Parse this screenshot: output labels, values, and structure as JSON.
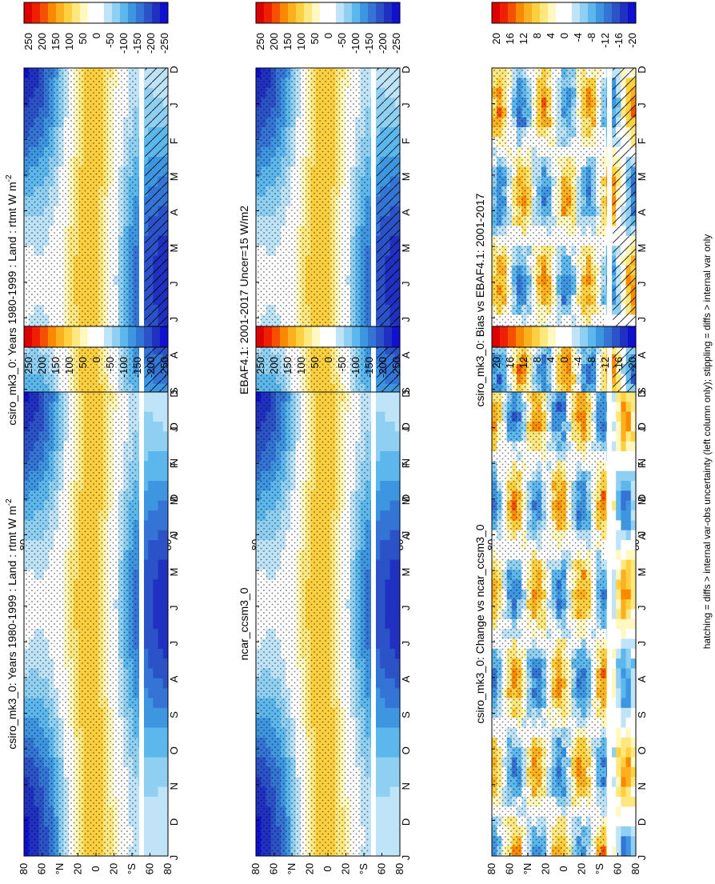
{
  "figure": {
    "footnote": "hatching = diffs > internal var-obs uncertainty (left column only); stippling = diffs > internal var only"
  },
  "months": [
    "D",
    "J",
    "F",
    "M",
    "A",
    "M",
    "J",
    "J",
    "A",
    "S",
    "O",
    "N",
    "D",
    "J"
  ],
  "lat_labels": [
    "80",
    "60",
    "°N",
    "20",
    "0",
    "20",
    "°S",
    "60",
    "80"
  ],
  "chart_data": [
    {
      "type": "heatmap",
      "row": 0,
      "col": 0,
      "title": "csiro_mk3_0: Years 1980-1999 : Land : rtmt W m",
      "title_sup": "-2",
      "x": "month",
      "y": "latitude",
      "field": "mean",
      "colorbar": {
        "colors": [
          "#dd0000",
          "#ee2000",
          "#f55000",
          "#f98a00",
          "#fbb020",
          "#fdd040",
          "#fde880",
          "#fff8c0",
          "#ffffff",
          "#ffffff",
          "#bfe4f8",
          "#8fd0f2",
          "#5cb8ec",
          "#3e96e0",
          "#3474d4",
          "#2c52c8",
          "#2030c0",
          "#1010d0"
        ],
        "ticks": [
          "250",
          "200",
          "150",
          "100",
          "50",
          "0",
          "-50",
          "-100",
          "-150",
          "-200",
          "-250"
        ]
      }
    },
    {
      "type": "heatmap",
      "row": 0,
      "col": 1,
      "title": "csiro_mk3_0: Years 1980-1999 : Land : rtmt W m",
      "title_sup": "-2",
      "x": "month",
      "y": "latitude",
      "field": "mean",
      "colorbar": {
        "colors": [
          "#dd0000",
          "#ee2000",
          "#f55000",
          "#f98a00",
          "#fbb020",
          "#fdd040",
          "#fde880",
          "#fff8c0",
          "#ffffff",
          "#ffffff",
          "#bfe4f8",
          "#8fd0f2",
          "#5cb8ec",
          "#3e96e0",
          "#3474d4",
          "#2c52c8",
          "#2030c0",
          "#1010d0"
        ],
        "ticks": [
          "250",
          "200",
          "150",
          "100",
          "50",
          "0",
          "-50",
          "-100",
          "-150",
          "-200",
          "-250"
        ]
      }
    },
    {
      "type": "heatmap",
      "row": 1,
      "col": 0,
      "title": "EBAF4.1: 2001-2017 Uncer=15 W/m2",
      "title_sup": "",
      "x": "month",
      "y": "latitude",
      "field": "mean",
      "colorbar": {
        "colors": [
          "#dd0000",
          "#ee2000",
          "#f55000",
          "#f98a00",
          "#fbb020",
          "#fdd040",
          "#fde880",
          "#fff8c0",
          "#ffffff",
          "#ffffff",
          "#bfe4f8",
          "#8fd0f2",
          "#5cb8ec",
          "#3e96e0",
          "#3474d4",
          "#2c52c8",
          "#2030c0",
          "#1010d0"
        ],
        "ticks": [
          "250",
          "200",
          "150",
          "100",
          "50",
          "0",
          "-50",
          "-100",
          "-150",
          "-200",
          "-250"
        ]
      }
    },
    {
      "type": "heatmap",
      "row": 1,
      "col": 1,
      "title": "ncar_ccsm3_0",
      "title_sup": "",
      "x": "month",
      "y": "latitude",
      "field": "mean",
      "colorbar": {
        "colors": [
          "#dd0000",
          "#ee2000",
          "#f55000",
          "#f98a00",
          "#fbb020",
          "#fdd040",
          "#fde880",
          "#fff8c0",
          "#ffffff",
          "#ffffff",
          "#bfe4f8",
          "#8fd0f2",
          "#5cb8ec",
          "#3e96e0",
          "#3474d4",
          "#2c52c8",
          "#2030c0",
          "#1010d0"
        ],
        "ticks": [
          "250",
          "200",
          "150",
          "100",
          "50",
          "0",
          "-50",
          "-100",
          "-150",
          "-200",
          "-250"
        ]
      }
    },
    {
      "type": "heatmap",
      "row": 2,
      "col": 0,
      "title": "csiro_mk3_0: Bias vs EBAF4.1: 2001-2017",
      "title_sup": "",
      "x": "month",
      "y": "latitude",
      "field": "diff",
      "colorbar": {
        "colors": [
          "#dd0000",
          "#ee2000",
          "#f55000",
          "#f98a00",
          "#fbb020",
          "#fdd040",
          "#fde880",
          "#fff8c0",
          "#ffffff",
          "#ffffff",
          "#bfe4f8",
          "#8fd0f2",
          "#5cb8ec",
          "#3e96e0",
          "#3474d4",
          "#2c52c8",
          "#2030c0",
          "#1010d0"
        ],
        "ticks": [
          "20",
          "16",
          "12",
          "8",
          "4",
          "0",
          "-4",
          "-8",
          "-12",
          "-16",
          "-20"
        ]
      }
    },
    {
      "type": "heatmap",
      "row": 2,
      "col": 1,
      "title": "csiro_mk3_0: Change vs ncar_ccsm3_0",
      "title_sup": "",
      "x": "month",
      "y": "latitude",
      "field": "diff",
      "colorbar": {
        "colors": [
          "#dd0000",
          "#ee2000",
          "#f55000",
          "#f98a00",
          "#fbb020",
          "#fdd040",
          "#fde880",
          "#fff8c0",
          "#ffffff",
          "#ffffff",
          "#bfe4f8",
          "#8fd0f2",
          "#5cb8ec",
          "#3e96e0",
          "#3474d4",
          "#2c52c8",
          "#2030c0",
          "#1010d0"
        ],
        "ticks": [
          "20",
          "16",
          "12",
          "8",
          "4",
          "0",
          "-4",
          "-8",
          "-12",
          "-16",
          "-20"
        ]
      }
    }
  ]
}
